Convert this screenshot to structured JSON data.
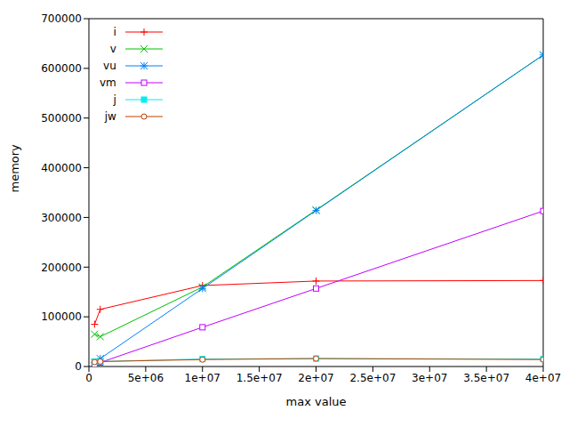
{
  "chart_data": {
    "type": "line",
    "x_label": "max value",
    "y_label": "memory",
    "x": [
      500000,
      1000000,
      10000000,
      20000000,
      40000000
    ],
    "series": [
      {
        "name": "i",
        "color": "#ff0000",
        "marker": "plus",
        "values": [
          85000,
          115000,
          163000,
          172000,
          173000
        ]
      },
      {
        "name": "v",
        "color": "#00c000",
        "marker": "x",
        "values": [
          65000,
          60000,
          160000,
          315000,
          627000
        ]
      },
      {
        "name": "vu",
        "color": "#0080ff",
        "marker": "star",
        "values": [
          8000,
          16000,
          157000,
          314000,
          627000
        ]
      },
      {
        "name": "vm",
        "color": "#c000ff",
        "marker": "square",
        "values": [
          4000,
          8000,
          79000,
          157000,
          313000
        ]
      },
      {
        "name": "j",
        "color": "#00eeee",
        "marker": "filled_square",
        "values": [
          10000,
          10000,
          15000,
          16000,
          15000
        ]
      },
      {
        "name": "jw",
        "color": "#c04000",
        "marker": "circle",
        "values": [
          9000,
          10000,
          14000,
          16000,
          14000
        ]
      }
    ],
    "xlim": [
      0,
      40000000
    ],
    "xticks": [
      0,
      {
        "value": 5000000,
        "label": "5e+06"
      },
      {
        "value": 10000000,
        "label": "1e+07"
      },
      {
        "value": 15000000,
        "label": "1.5e+07"
      },
      {
        "value": 20000000,
        "label": "2e+07"
      },
      {
        "value": 25000000,
        "label": "2.5e+07"
      },
      {
        "value": 30000000,
        "label": "3e+07"
      },
      {
        "value": 35000000,
        "label": "3.5e+07"
      },
      {
        "value": 40000000,
        "label": "4e+07"
      }
    ],
    "ylim": [
      0,
      700000
    ],
    "yticks": [
      0,
      100000,
      200000,
      300000,
      400000,
      500000,
      600000,
      700000
    ],
    "legend": "upper left",
    "grid": false
  }
}
